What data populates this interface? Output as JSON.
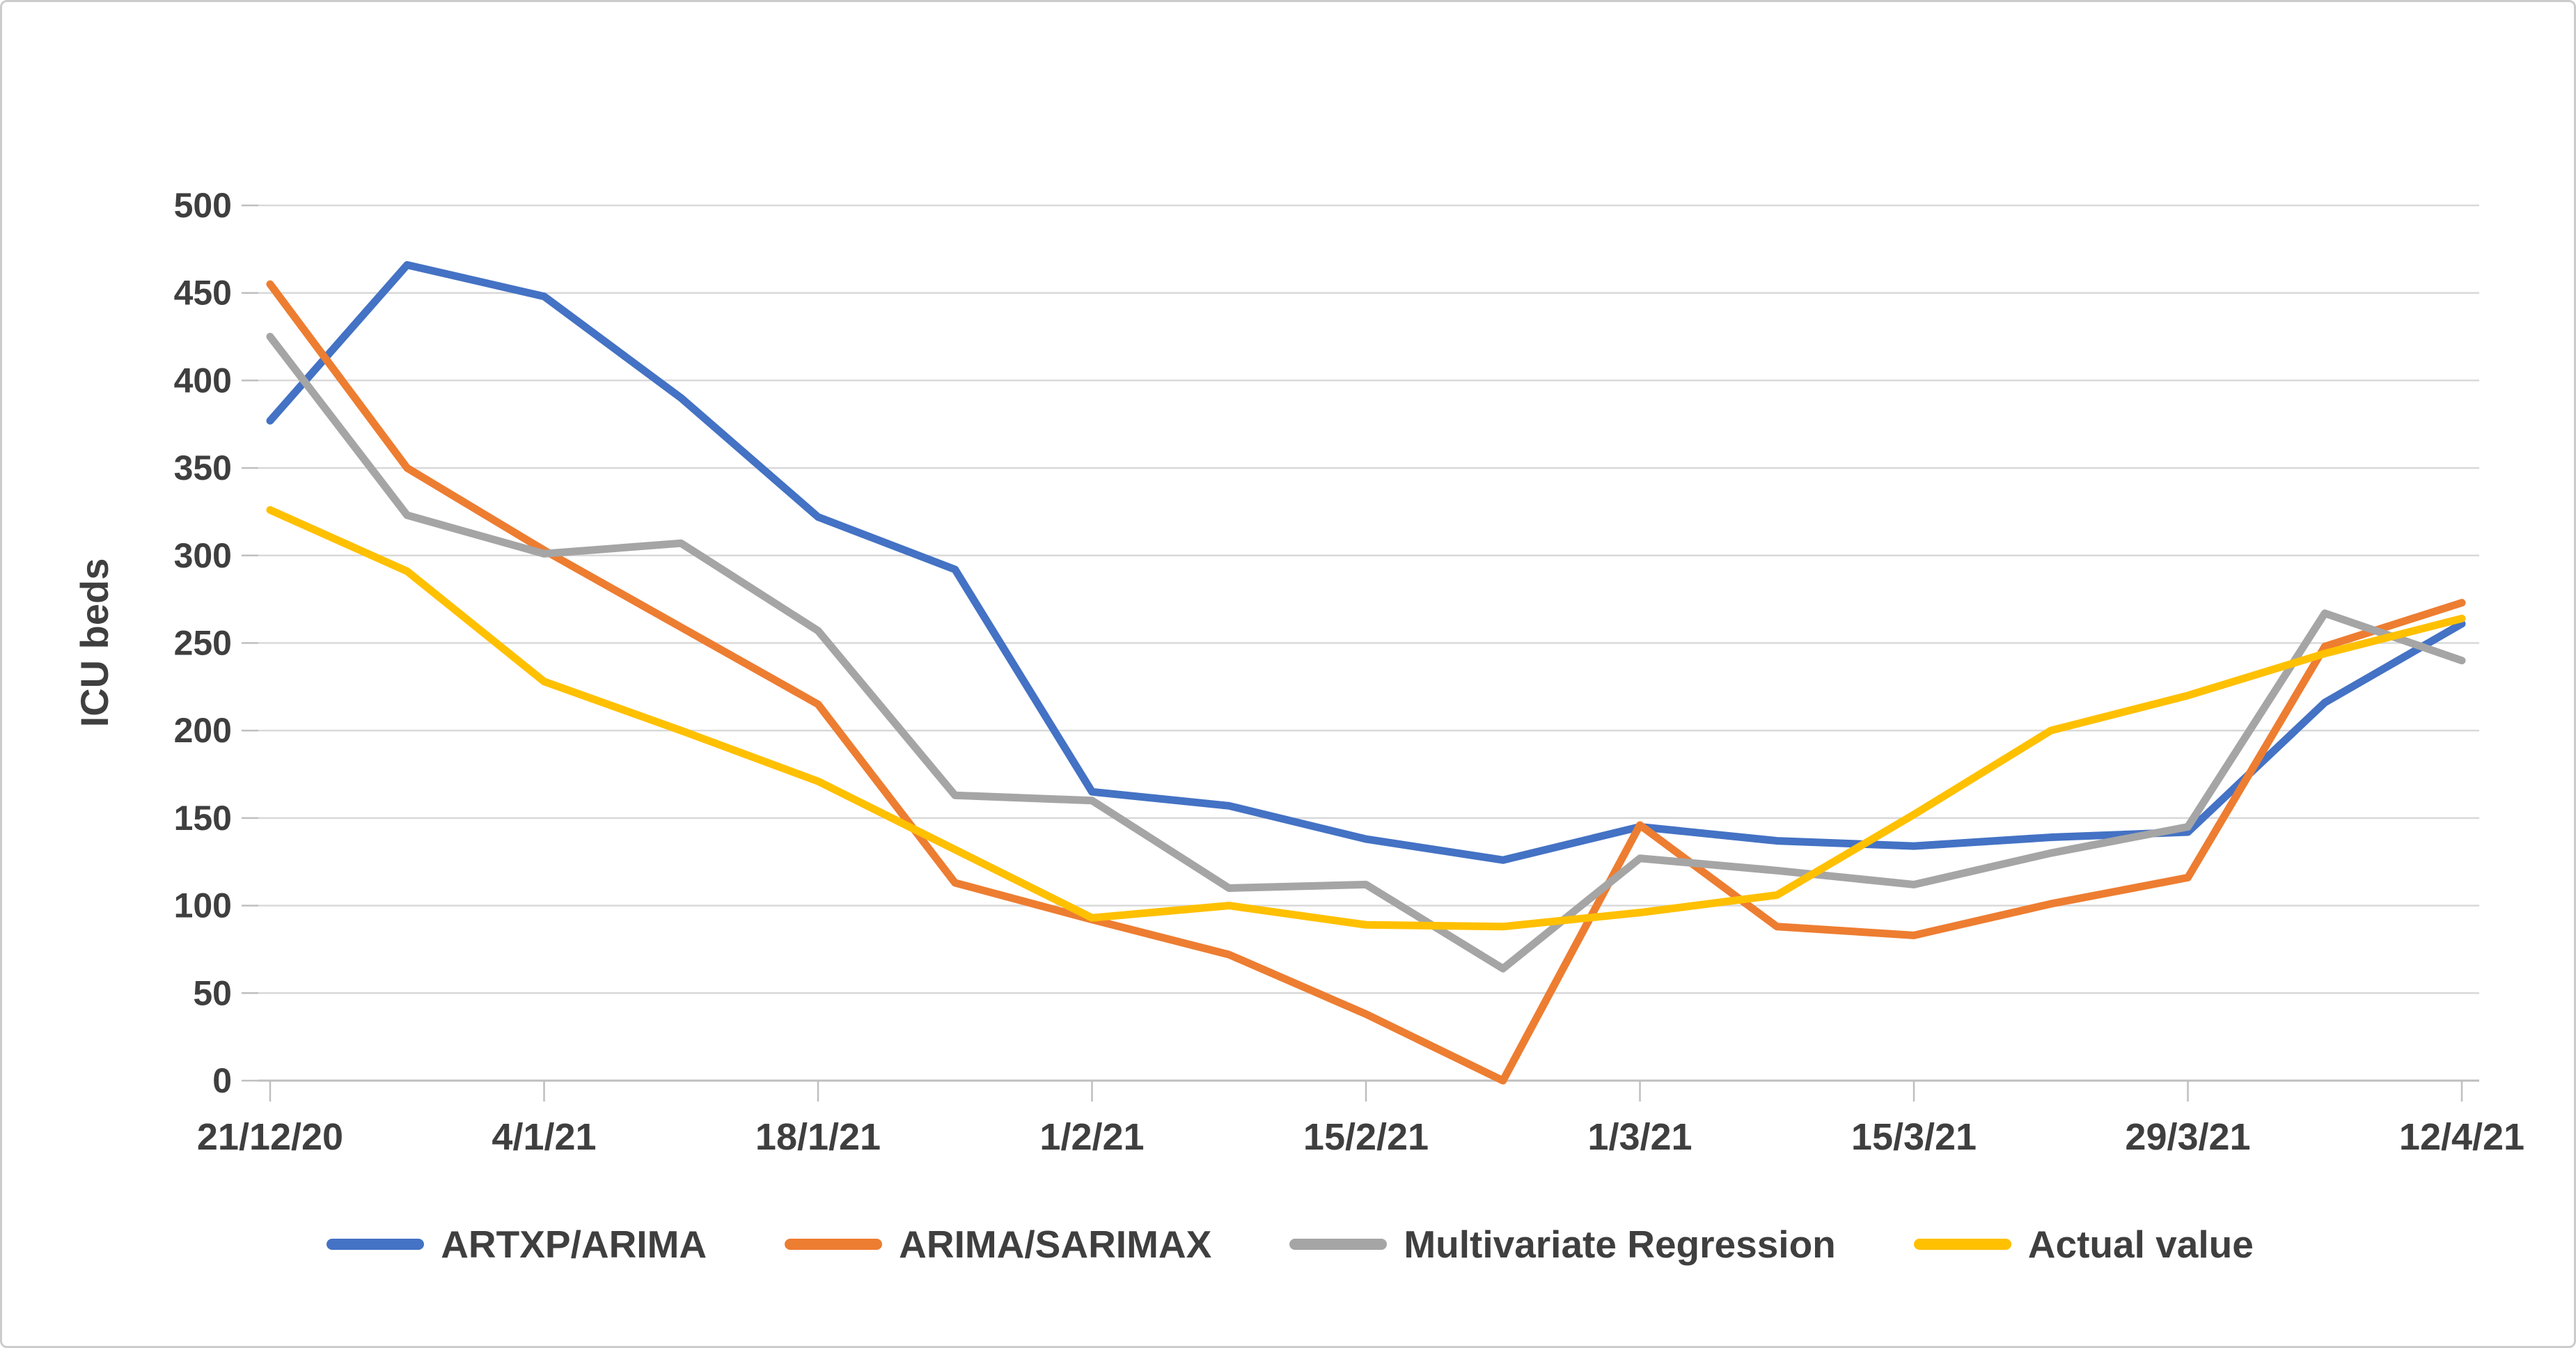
{
  "chart_data": {
    "type": "line",
    "title": "",
    "xlabel": "",
    "ylabel": "ICU beds",
    "ylim": [
      0,
      500
    ],
    "ytick_step": 50,
    "yticks": [
      0,
      50,
      100,
      150,
      200,
      250,
      300,
      350,
      400,
      450,
      500
    ],
    "grid": true,
    "legend_position": "bottom",
    "x": [
      "21/12/20",
      "28/12/20",
      "4/1/21",
      "11/1/21",
      "18/1/21",
      "25/1/21",
      "1/2/21",
      "8/2/21",
      "15/2/21",
      "22/2/21",
      "1/3/21",
      "8/3/21",
      "15/3/21",
      "22/3/21",
      "29/3/21",
      "5/4/21",
      "12/4/21"
    ],
    "xtick_labels_shown": [
      "21/12/20",
      "4/1/21",
      "18/1/21",
      "1/2/21",
      "15/2/21",
      "1/3/21",
      "15/3/21",
      "29/3/21",
      "12/4/21"
    ],
    "series": [
      {
        "name": "ARTXP/ARIMA",
        "color": "#4472C4",
        "values": [
          377,
          466,
          448,
          390,
          322,
          292,
          165,
          157,
          138,
          126,
          145,
          137,
          134,
          139,
          142,
          216,
          261
        ]
      },
      {
        "name": "ARIMA/SARIMAX",
        "color": "#ED7D31",
        "values": [
          455,
          350,
          303,
          259,
          215,
          113,
          92,
          72,
          38,
          0,
          146,
          88,
          83,
          101,
          116,
          248,
          273
        ]
      },
      {
        "name": "Multivariate Regression",
        "color": "#A5A5A5",
        "values": [
          425,
          323,
          301,
          307,
          257,
          163,
          160,
          110,
          112,
          64,
          127,
          120,
          112,
          130,
          145,
          267,
          240
        ]
      },
      {
        "name": "Actual value",
        "color": "#FFC000",
        "values": [
          326,
          291,
          228,
          200,
          171,
          132,
          93,
          100,
          89,
          88,
          96,
          106,
          152,
          200,
          220,
          244,
          264
        ]
      }
    ],
    "styles": {
      "text_color": "#3F3F3F",
      "gridline_color": "#D9D9D9",
      "axis_color": "#BFBFBF",
      "background_color": "#FFFFFF",
      "border_color": "#CCCCCC"
    }
  }
}
